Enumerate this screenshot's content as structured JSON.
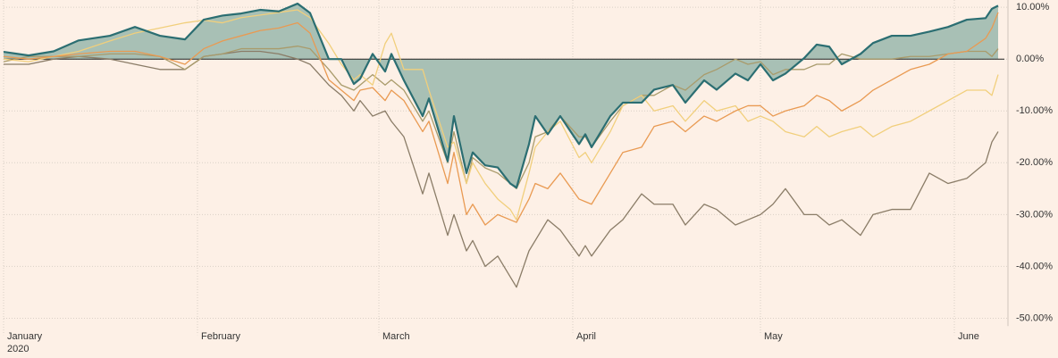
{
  "chart_data": {
    "type": "line",
    "x_sublabel": "2020",
    "x": [
      0,
      4,
      8,
      12,
      17,
      21,
      25,
      29,
      32,
      35,
      38,
      41,
      44,
      47,
      49,
      52,
      54,
      56,
      57,
      59,
      61,
      62,
      64,
      67,
      68,
      71,
      72,
      74,
      75,
      77,
      79,
      81,
      82,
      84,
      85,
      87,
      89,
      92,
      93,
      94,
      97,
      99,
      102,
      104,
      107,
      109,
      112,
      114,
      117,
      119,
      121,
      123,
      125,
      128,
      130,
      132,
      134,
      137,
      139,
      142,
      145,
      148,
      151,
      154,
      157,
      158,
      159
    ],
    "xlim": [
      0,
      160
    ],
    "xticks": [
      {
        "value": 0,
        "label": "January"
      },
      {
        "value": 31,
        "label": "February"
      },
      {
        "value": 60,
        "label": "March"
      },
      {
        "value": 91,
        "label": "April"
      },
      {
        "value": 121,
        "label": "May"
      },
      {
        "value": 152,
        "label": "June"
      }
    ],
    "ylim": [
      -51.5,
      11.4
    ],
    "yticks": [
      {
        "value": 10,
        "label": "10.00%"
      },
      {
        "value": 0,
        "label": "0.00%"
      },
      {
        "value": -10,
        "label": "-10.00%"
      },
      {
        "value": -20,
        "label": "-20.00%"
      },
      {
        "value": -30,
        "label": "-30.00%"
      },
      {
        "value": -40,
        "label": "-40.00%"
      },
      {
        "value": -50,
        "label": "-50.00%"
      }
    ],
    "grid": true,
    "series": [
      {
        "color": "#2b6e72",
        "area": true,
        "area_color": "#a8c0b5",
        "width": 2.2,
        "values": [
          1.4,
          0.7,
          1.5,
          3.6,
          4.5,
          6.2,
          4.5,
          3.8,
          7.6,
          8.4,
          8.8,
          9.5,
          9.2,
          10.7,
          8.9,
          0,
          0,
          -4.8,
          -3.8,
          1,
          -2.4,
          1,
          -4.1,
          -11,
          -7.6,
          -19.7,
          -11,
          -22,
          -18,
          -20.5,
          -20.9,
          -24,
          -24.8,
          -16.4,
          -11,
          -14.5,
          -11,
          -16.4,
          -14.5,
          -17,
          -11,
          -8.4,
          -8.4,
          -5.9,
          -5,
          -8.4,
          -4.1,
          -5.9,
          -2.8,
          -4.1,
          -1,
          -4.1,
          -2.8,
          0.2,
          2.8,
          2.4,
          -1,
          1,
          3.1,
          4.5,
          4.5,
          5.3,
          6.2,
          7.6,
          7.9,
          9.7,
          10.3
        ]
      },
      {
        "color": "#e99a52",
        "width": 1.3,
        "values": [
          0.5,
          0,
          0.5,
          1,
          1.5,
          1.5,
          0.5,
          -1,
          2,
          3.5,
          4.5,
          5.5,
          6,
          7,
          5,
          -4,
          -6,
          -8,
          -6,
          -5.5,
          -8,
          -6,
          -8,
          -14,
          -12,
          -24,
          -18,
          -30,
          -28,
          -32,
          -30,
          -31,
          -31.5,
          -27,
          -24,
          -25,
          -22,
          -27,
          -27.5,
          -28,
          -22,
          -18,
          -17,
          -13,
          -12,
          -14,
          -11,
          -12,
          -10,
          -9,
          -9,
          -11,
          -10,
          -9,
          -7,
          -8,
          -10,
          -8,
          -6,
          -4,
          -2,
          -1,
          1,
          1.5,
          4,
          6,
          9
        ]
      },
      {
        "color": "#f1cf7c",
        "width": 1.3,
        "values": [
          0,
          -0.5,
          0.5,
          1.5,
          3.5,
          5,
          6,
          7,
          7.5,
          7,
          8,
          8.5,
          9,
          9.5,
          8,
          3,
          -1,
          -4,
          -3,
          -5,
          3,
          5,
          -2,
          -2,
          -6,
          -17,
          -16,
          -24,
          -20,
          -24,
          -27,
          -29,
          -31,
          -22,
          -17,
          -14,
          -12,
          -19,
          -18,
          -20,
          -14,
          -9,
          -7,
          -10,
          -9,
          -12,
          -8,
          -10,
          -9,
          -12,
          -11,
          -12,
          -14,
          -15,
          -13,
          -15,
          -14,
          -13,
          -15,
          -13,
          -12,
          -10,
          -8,
          -6,
          -6,
          -7,
          -3
        ]
      },
      {
        "color": "#a99b6b",
        "width": 1.3,
        "values": [
          -0.5,
          0.5,
          0.5,
          0.5,
          1,
          1,
          0.5,
          -2,
          0.5,
          1,
          2,
          2,
          2,
          2.5,
          2,
          -2,
          -5,
          -6,
          -5,
          -3,
          -5,
          -4,
          -6,
          -12,
          -10,
          -20,
          -14,
          -24,
          -19,
          -21,
          -22,
          -24,
          -25,
          -20,
          -15,
          -14,
          -11,
          -15,
          -15,
          -17,
          -12,
          -9,
          -7,
          -7,
          -5,
          -6,
          -3,
          -2,
          0,
          -1,
          -0.5,
          -3,
          -2,
          -2,
          -1,
          -1,
          1,
          0,
          0,
          0,
          0.5,
          0.5,
          1,
          1.5,
          1.5,
          0.5,
          2
        ]
      },
      {
        "color": "#8a7c67",
        "width": 1.3,
        "values": [
          -1,
          -1,
          0,
          0.5,
          0,
          -1,
          -2,
          -2,
          0.5,
          1,
          1.5,
          1.5,
          1,
          0,
          -1,
          -5,
          -7,
          -10,
          -8,
          -11,
          -10,
          -12,
          -15,
          -26,
          -22,
          -34,
          -30,
          -37,
          -35,
          -40,
          -38,
          -42,
          -44,
          -37,
          -35,
          -31,
          -33,
          -38,
          -36,
          -38,
          -33,
          -31,
          -26,
          -28,
          -28,
          -32,
          -28,
          -29,
          -32,
          -31,
          -30,
          -28,
          -25,
          -30,
          -30,
          -32,
          -31,
          -34,
          -30,
          -29,
          -29,
          -22,
          -24,
          -23,
          -20,
          -16,
          -14
        ]
      }
    ]
  }
}
